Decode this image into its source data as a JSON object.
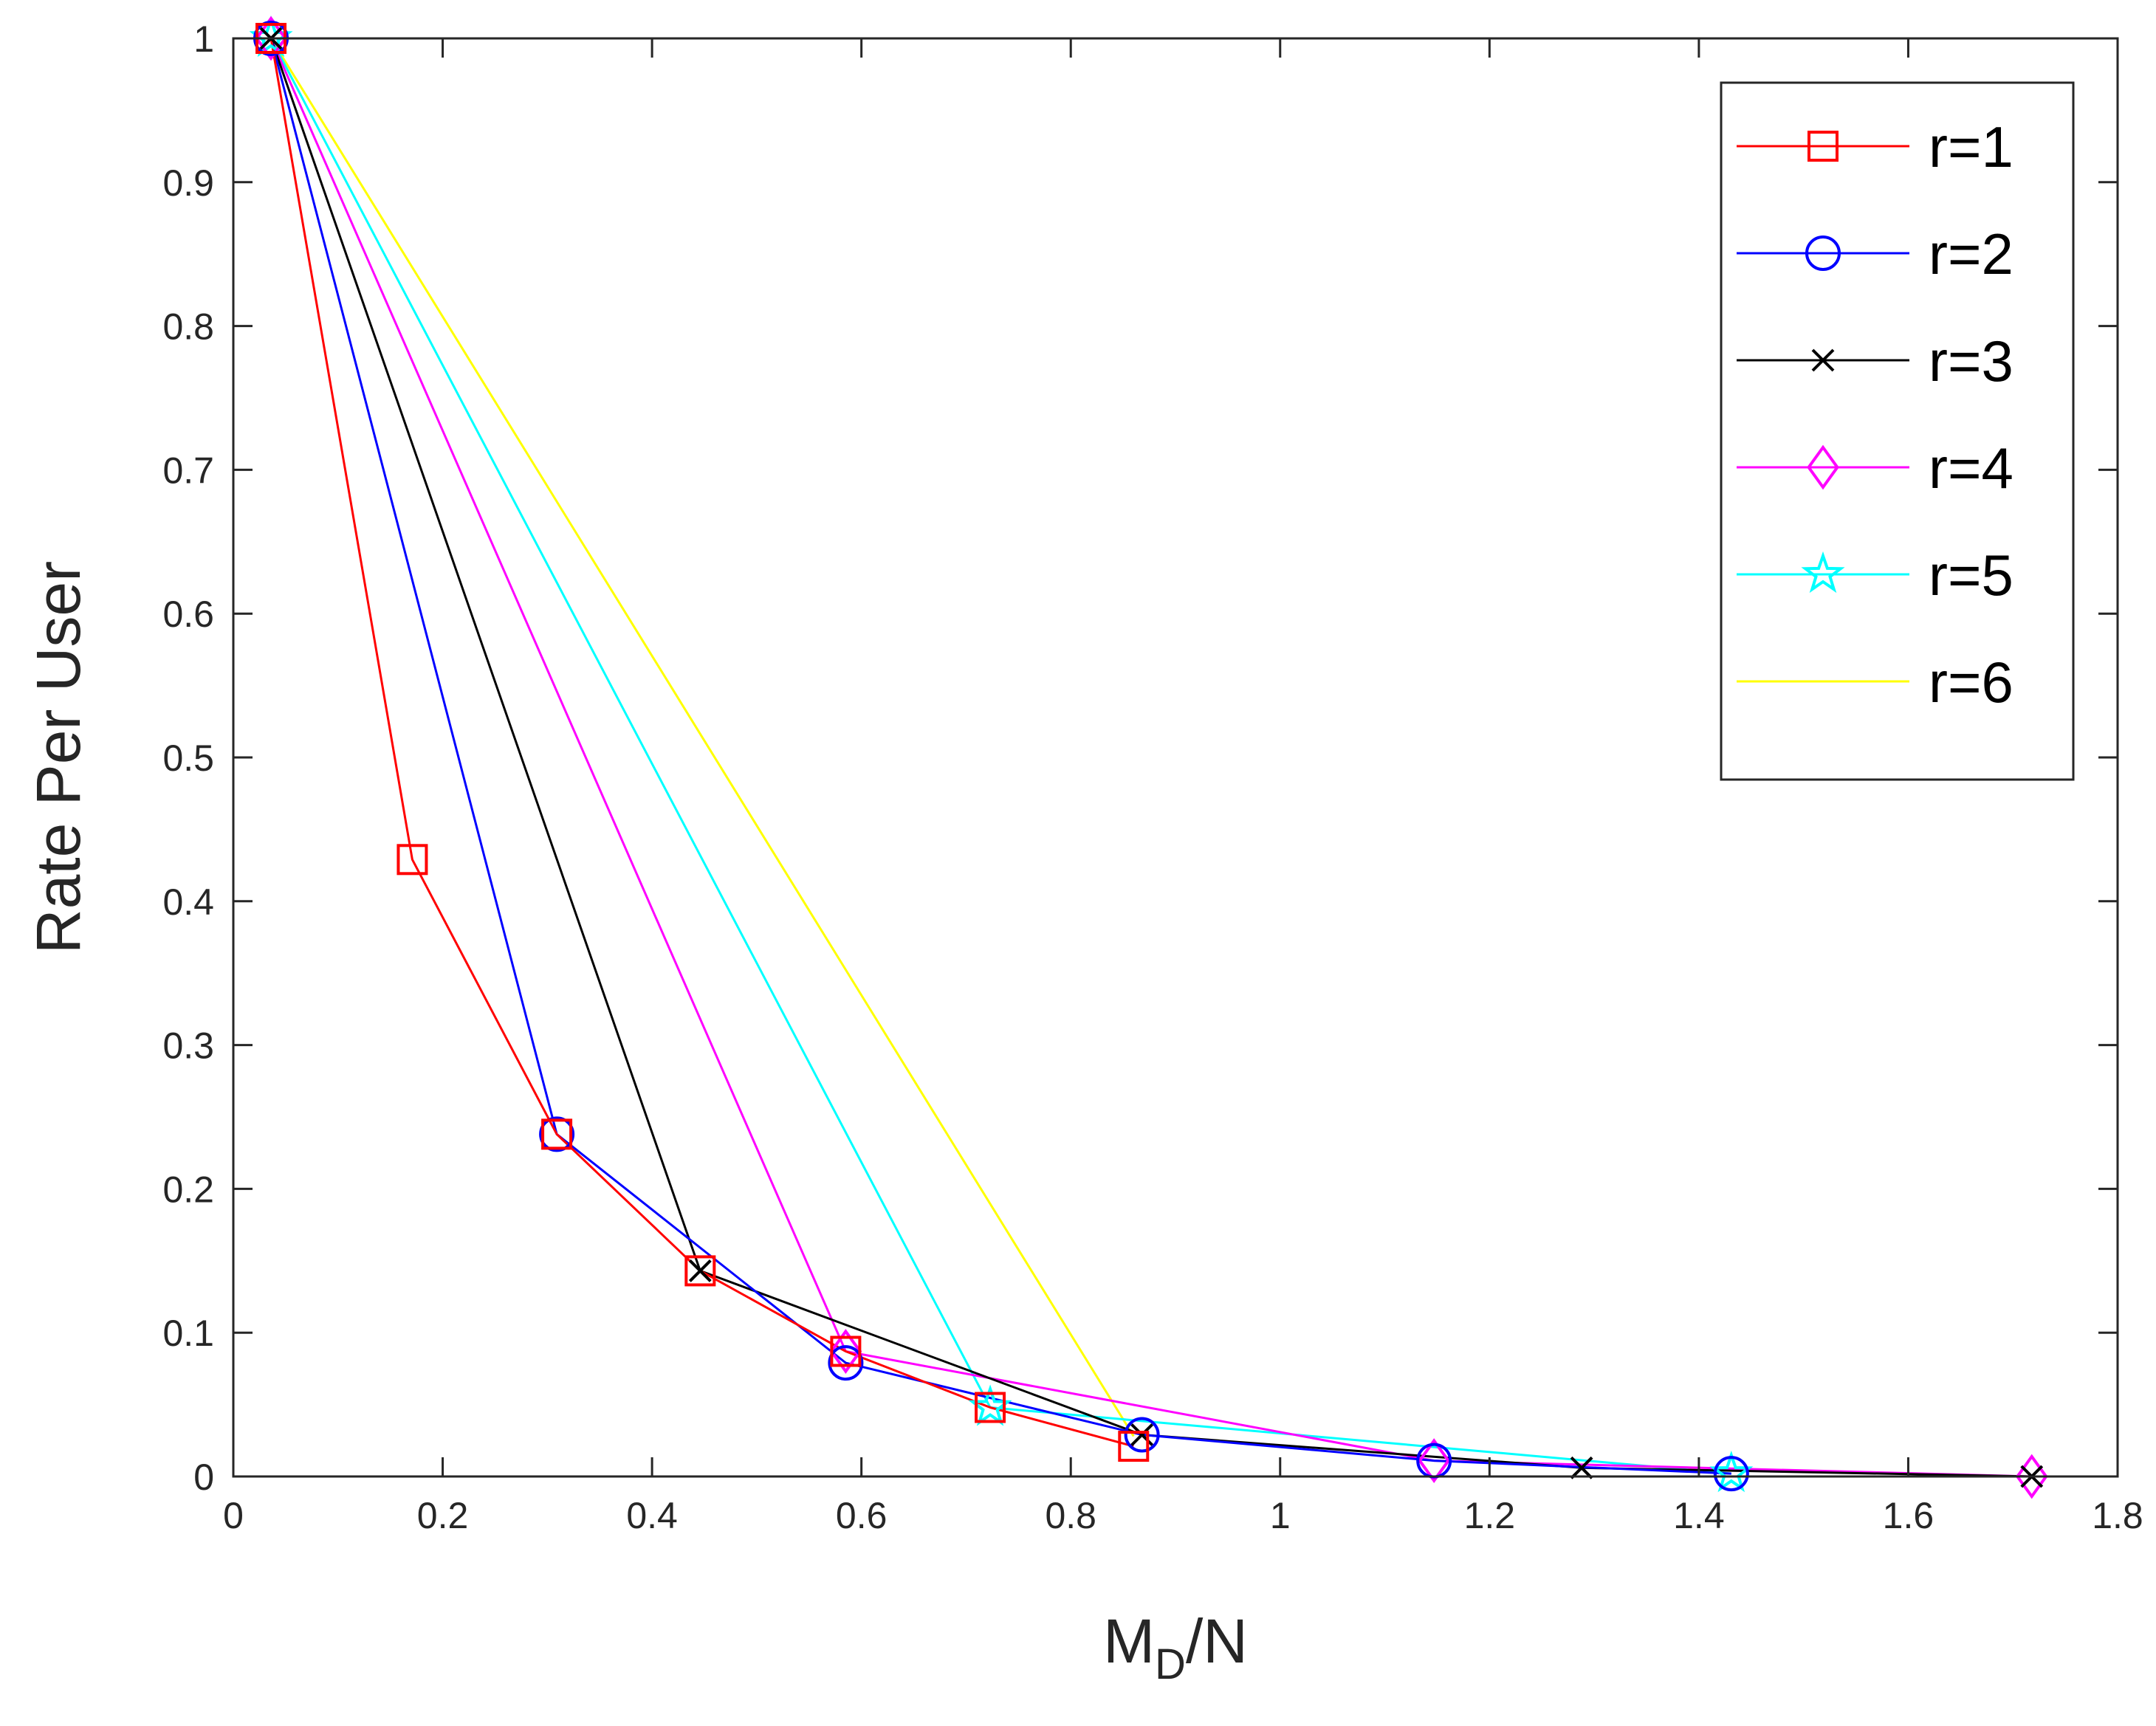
{
  "chart_data": {
    "type": "line",
    "xlabel": {
      "main": "M",
      "sub": "D",
      "suffix": "/N"
    },
    "ylabel": "Rate Per User",
    "xlim": [
      0,
      1.8
    ],
    "ylim": [
      0,
      1
    ],
    "xticks": [
      "0",
      "0.2",
      "0.4",
      "0.6",
      "0.8",
      "1",
      "1.2",
      "1.4",
      "1.6",
      "1.8"
    ],
    "yticks": [
      "0",
      "0.1",
      "0.2",
      "0.3",
      "0.4",
      "0.5",
      "0.6",
      "0.7",
      "0.8",
      "0.9",
      "1"
    ],
    "grid": false,
    "legend_position": "top-right",
    "series": [
      {
        "name": "r=1",
        "color": "#ff0000",
        "marker": "square",
        "x": [
          0.036,
          0.171,
          0.309,
          0.446,
          0.585,
          0.723,
          0.86
        ],
        "y": [
          1.0,
          0.429,
          0.238,
          0.143,
          0.087,
          0.048,
          0.021
        ]
      },
      {
        "name": "r=2",
        "color": "#0000ff",
        "marker": "circle",
        "x": [
          0.036,
          0.309,
          0.585,
          0.868,
          1.147,
          1.431
        ],
        "y": [
          1.0,
          0.238,
          0.079,
          0.029,
          0.011,
          0.002
        ]
      },
      {
        "name": "r=3",
        "color": "#000000",
        "marker": "x",
        "x": [
          0.036,
          0.446,
          0.868,
          1.288,
          1.718
        ],
        "y": [
          1.0,
          0.143,
          0.029,
          0.006,
          0.0
        ]
      },
      {
        "name": "r=4",
        "color": "#ff00ff",
        "marker": "diamond",
        "x": [
          0.036,
          0.585,
          1.147,
          1.718
        ],
        "y": [
          1.0,
          0.087,
          0.011,
          0.0
        ]
      },
      {
        "name": "r=5",
        "color": "#00ffff",
        "marker": "star",
        "x": [
          0.036,
          0.723,
          1.431
        ],
        "y": [
          1.0,
          0.048,
          0.002
        ]
      },
      {
        "name": "r=6",
        "color": "#ffff00",
        "marker": "none",
        "x": [
          0.036,
          0.86
        ],
        "y": [
          1.0,
          0.028
        ]
      }
    ]
  }
}
